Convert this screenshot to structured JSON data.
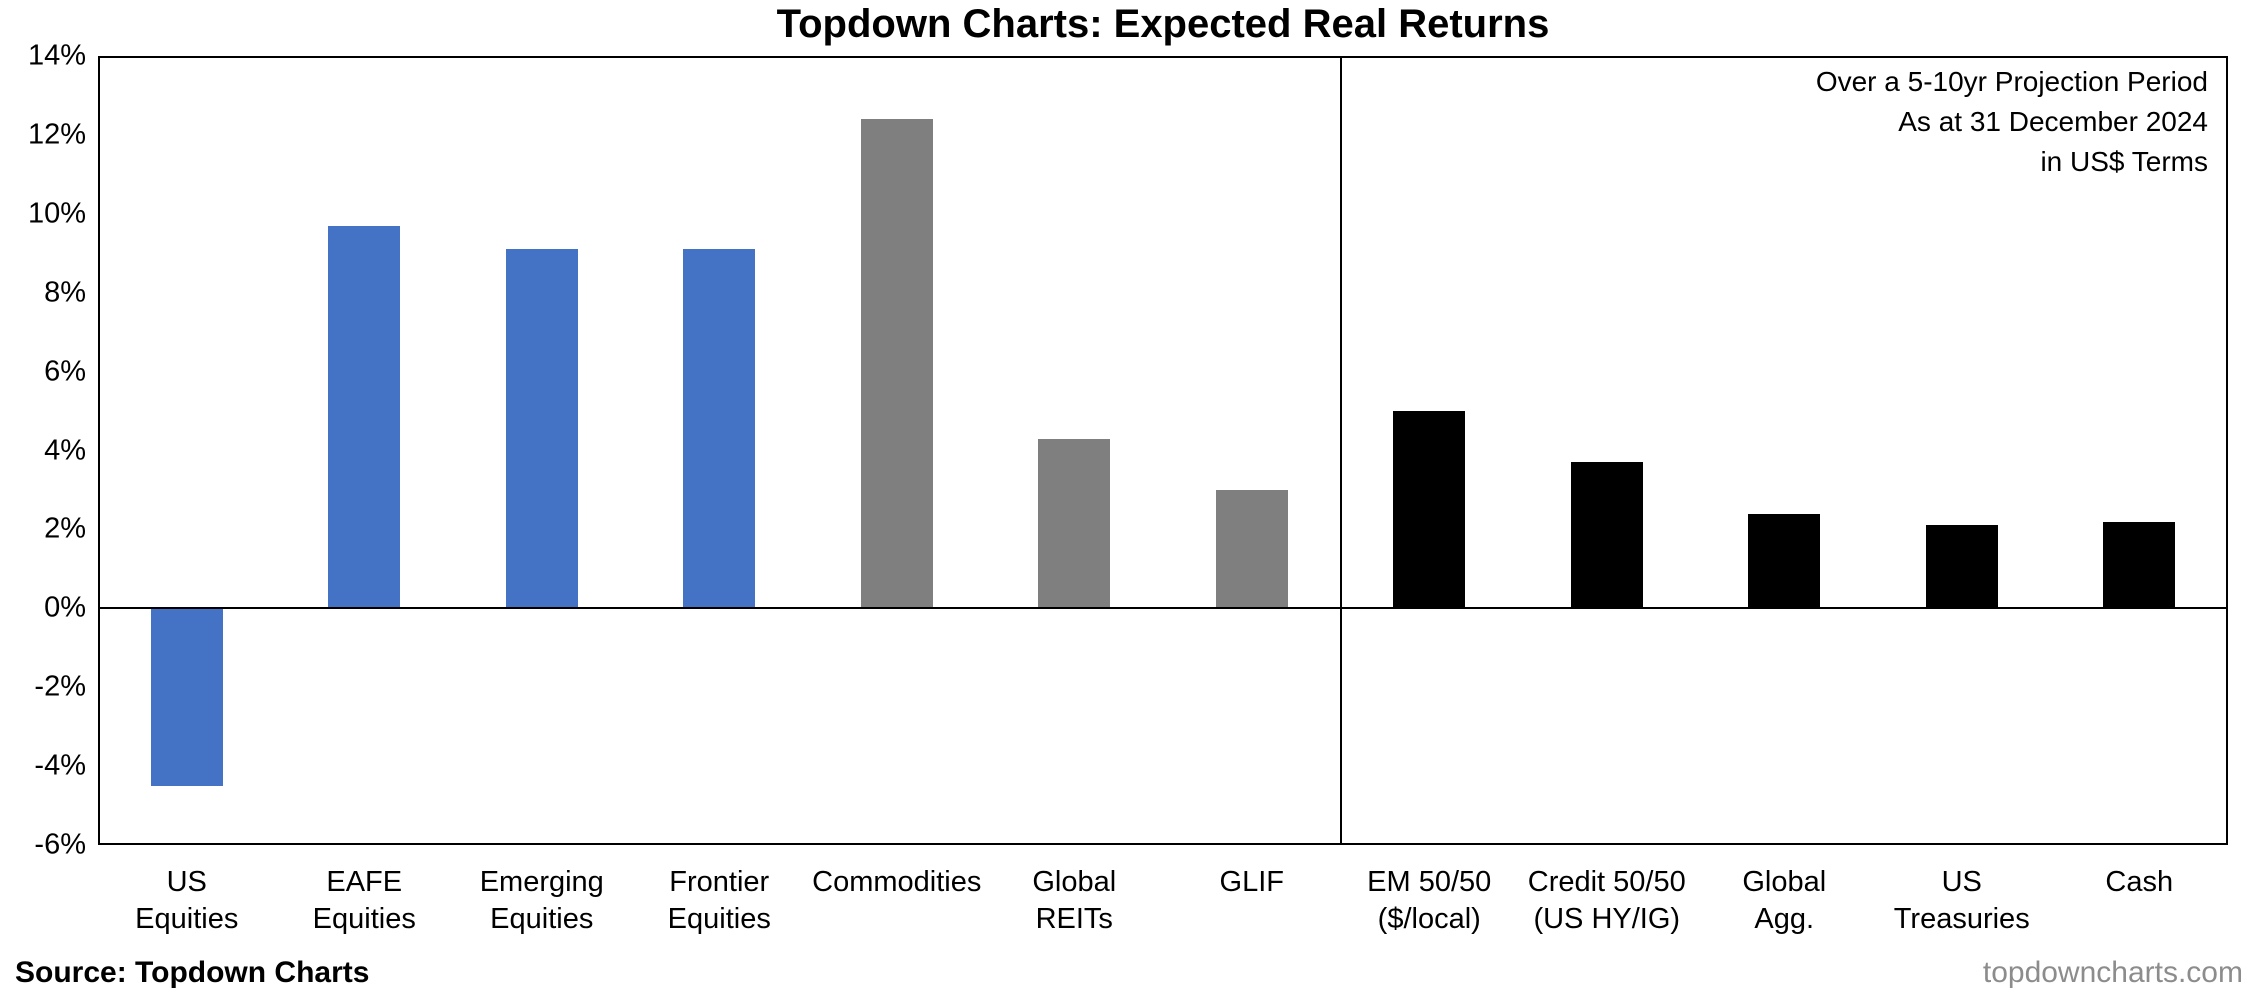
{
  "title": "Topdown Charts: Expected Real Returns",
  "annotations": {
    "lines": [
      "Over a 5-10yr Projection Period",
      "As at 31 December 2024",
      "in US$ Terms"
    ]
  },
  "footer": {
    "source": "Source: Topdown Charts",
    "website": "topdowncharts.com"
  },
  "colors": {
    "equities_blue": "#4472C4",
    "alternatives_gray": "#7F7F7F",
    "fixed_income_black": "#000000",
    "website_gray": "#8C8C8C",
    "axis_black": "#000000"
  },
  "chart_data": {
    "type": "bar",
    "title": "Topdown Charts: Expected Real Returns",
    "xlabel": "",
    "ylabel": "",
    "ylim": [
      -6,
      14
    ],
    "ytick_step": 2,
    "ytick_labels": [
      "14%",
      "12%",
      "10%",
      "8%",
      "6%",
      "4%",
      "2%",
      "0%",
      "-2%",
      "-4%",
      "-6%"
    ],
    "grid": false,
    "legend": false,
    "divider_after_index": 6,
    "categories": [
      [
        "US",
        "Equities"
      ],
      [
        "EAFE",
        "Equities"
      ],
      [
        "Emerging",
        "Equities"
      ],
      [
        "Frontier",
        "Equities"
      ],
      [
        "Commodities"
      ],
      [
        "Global",
        "REITs"
      ],
      [
        "GLIF"
      ],
      [
        "EM 50/50",
        "($/local)"
      ],
      [
        "Credit 50/50",
        "(US HY/IG)"
      ],
      [
        "Global",
        "Agg."
      ],
      [
        "US",
        "Treasuries"
      ],
      [
        "Cash"
      ]
    ],
    "values": [
      -4.5,
      9.7,
      9.1,
      9.1,
      12.4,
      4.3,
      3.0,
      5.0,
      3.7,
      2.4,
      2.1,
      2.2
    ],
    "bar_colors": [
      "#4472C4",
      "#4472C4",
      "#4472C4",
      "#4472C4",
      "#7F7F7F",
      "#7F7F7F",
      "#7F7F7F",
      "#000000",
      "#000000",
      "#000000",
      "#000000",
      "#000000"
    ]
  }
}
